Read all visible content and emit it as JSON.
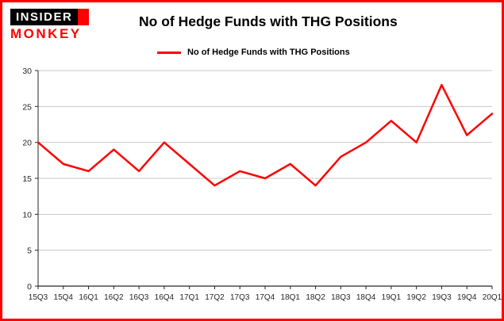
{
  "branding": {
    "logo_top": "INSIDER",
    "logo_bottom": "MONKEY"
  },
  "header": {
    "title": "No of Hedge Funds with THG Positions"
  },
  "legend": {
    "label": "No of Hedge Funds with THG Positions",
    "color": "#ff0000"
  },
  "colors": {
    "frame_border": "#ff0000",
    "line": "#ff0000",
    "gridline": "#c8c8c8",
    "axis": "#262626",
    "background": "#ffffff"
  },
  "chart_data": {
    "type": "line",
    "title": "No of Hedge Funds with THG Positions",
    "series_name": "No of Hedge Funds with THG Positions",
    "categories": [
      "15Q3",
      "15Q4",
      "16Q1",
      "16Q2",
      "16Q3",
      "16Q4",
      "17Q1",
      "17Q2",
      "17Q3",
      "17Q4",
      "18Q1",
      "18Q2",
      "18Q3",
      "18Q4",
      "19Q1",
      "19Q2",
      "19Q3",
      "19Q4",
      "20Q1"
    ],
    "values": [
      20,
      17,
      16,
      19,
      16,
      20,
      17,
      14,
      16,
      15,
      17,
      14,
      18,
      20,
      23,
      20,
      28,
      21,
      24
    ],
    "line_color": "#ff0000",
    "ylim": [
      0,
      30
    ],
    "yticks": [
      0,
      5,
      10,
      15,
      20,
      25,
      30
    ],
    "xlabel": "",
    "ylabel": "",
    "grid": true,
    "legend_position": "top-left"
  }
}
